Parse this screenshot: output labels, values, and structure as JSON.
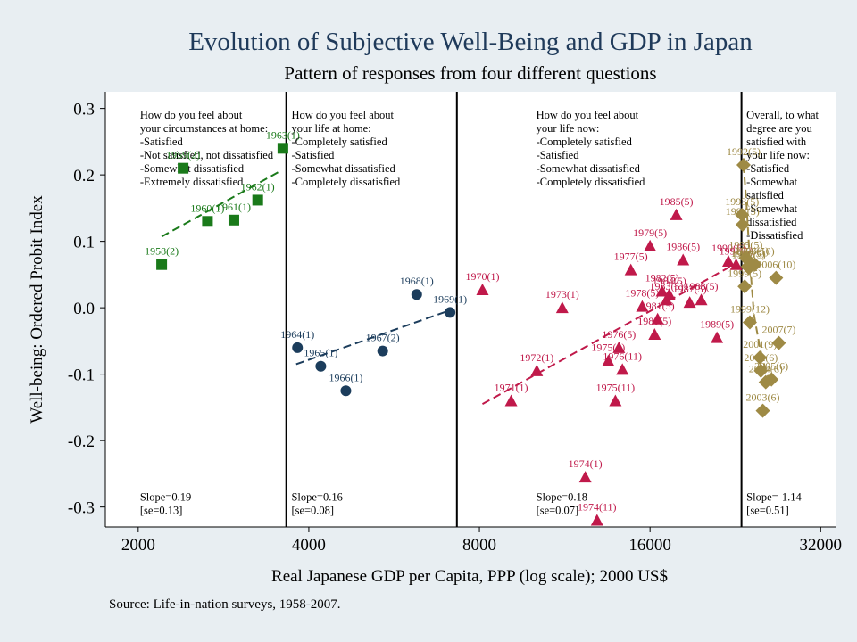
{
  "source_note": "Source: Life-in-nation surveys, 1958-2007.",
  "chart_data": {
    "type": "scatter",
    "title": "Evolution of Subjective Well-Being and GDP in Japan",
    "subtitle": "Pattern of responses from four different questions",
    "xlabel": "Real Japanese GDP per Capita, PPP (log scale); 2000 US$",
    "ylabel": "Well-being: Ordered Probit Index",
    "x_scale": "log2",
    "xlim": [
      1750,
      34000
    ],
    "ylim": [
      -0.33,
      0.325
    ],
    "x_ticks": [
      {
        "value": 2000,
        "label": "2000"
      },
      {
        "value": 4000,
        "label": "4000"
      },
      {
        "value": 8000,
        "label": "8000"
      },
      {
        "value": 16000,
        "label": "16000"
      },
      {
        "value": 32000,
        "label": "32000"
      }
    ],
    "y_ticks": [
      {
        "value": 0.3,
        "label": "0.3"
      },
      {
        "value": 0.2,
        "label": "0.2"
      },
      {
        "value": 0.1,
        "label": "0.1"
      },
      {
        "value": 0.0,
        "label": "0.0"
      },
      {
        "value": -0.1,
        "label": "-0.1"
      },
      {
        "value": -0.2,
        "label": "-0.2"
      },
      {
        "value": -0.3,
        "label": "-0.3"
      }
    ],
    "dividers_x": [
      3650,
      7300,
      23200
    ],
    "panels": [
      {
        "color": "#1a7a1a",
        "marker": "square",
        "text_x": 2000,
        "question": [
          "How do you feel about",
          "your circumstances at home:",
          "-Satisfied",
          "-Not satisfied, not dissatisfied",
          "-Somewhat dissatisfied",
          "-Extremely dissatisfied"
        ],
        "slope": "Slope=0.19",
        "se": "[se=0.13]",
        "trend": [
          [
            2200,
            0.107
          ],
          [
            3550,
            0.205
          ]
        ],
        "points": [
          {
            "x": 2200,
            "y": 0.065,
            "label": "1958(2)"
          },
          {
            "x": 2400,
            "y": 0.21,
            "label": "1959(2)"
          },
          {
            "x": 2650,
            "y": 0.13,
            "label": "1960(1)"
          },
          {
            "x": 2950,
            "y": 0.132,
            "label": "1961(1)"
          },
          {
            "x": 3250,
            "y": 0.162,
            "label": "1962(1)"
          },
          {
            "x": 3600,
            "y": 0.24,
            "label": "1963(1)"
          }
        ]
      },
      {
        "color": "#1c3d5c",
        "marker": "circle",
        "text_x": 3700,
        "question": [
          "How do you feel about",
          "your life at home:",
          "-Completely satisfied",
          "-Satisfied",
          "-Somewhat dissatisfied",
          "-Completely dissatisfied"
        ],
        "slope": "Slope=0.16",
        "se": "[se=0.08]",
        "trend": [
          [
            3800,
            -0.085
          ],
          [
            7200,
            -0.002
          ]
        ],
        "points": [
          {
            "x": 3820,
            "y": -0.06,
            "label": "1964(1)"
          },
          {
            "x": 4200,
            "y": -0.088,
            "label": "1965(1)"
          },
          {
            "x": 4650,
            "y": -0.125,
            "label": "1966(1)"
          },
          {
            "x": 5400,
            "y": -0.065,
            "label": "1967(2)"
          },
          {
            "x": 6200,
            "y": 0.02,
            "label": "1968(1)"
          },
          {
            "x": 7100,
            "y": -0.007,
            "label": "1969(1)"
          }
        ]
      },
      {
        "color": "#c0194a",
        "marker": "triangle",
        "text_x": 10000,
        "question": [
          "How do you feel about",
          "your life now:",
          "-Completely satisfied",
          "-Satisfied",
          "-Somewhat dissatisfied",
          "-Completely dissatisfied"
        ],
        "slope": "Slope=0.18",
        "se": "[se=0.07]",
        "trend": [
          [
            8100,
            -0.145
          ],
          [
            22500,
            0.065
          ]
        ],
        "points": [
          {
            "x": 8100,
            "y": 0.027,
            "label": "1970(1)"
          },
          {
            "x": 9100,
            "y": -0.14,
            "label": "1971(1)"
          },
          {
            "x": 10100,
            "y": -0.095,
            "label": "1972(1)"
          },
          {
            "x": 11200,
            "y": 0.0,
            "label": "1973(1)"
          },
          {
            "x": 12300,
            "y": -0.255,
            "label": "1974(1)"
          },
          {
            "x": 12900,
            "y": -0.32,
            "label": "1974(11)"
          },
          {
            "x": 13500,
            "y": -0.08,
            "label": "1975(1)"
          },
          {
            "x": 13900,
            "y": -0.14,
            "label": "1975(11)"
          },
          {
            "x": 14100,
            "y": -0.06,
            "label": "1976(5)"
          },
          {
            "x": 14300,
            "y": -0.093,
            "label": "1976(11)"
          },
          {
            "x": 14800,
            "y": 0.057,
            "label": "1977(5)"
          },
          {
            "x": 15500,
            "y": 0.002,
            "label": "1978(5)"
          },
          {
            "x": 16000,
            "y": 0.093,
            "label": "1979(5)"
          },
          {
            "x": 16300,
            "y": -0.04,
            "label": "1980(5)"
          },
          {
            "x": 16500,
            "y": -0.017,
            "label": "1981(5)"
          },
          {
            "x": 16800,
            "y": 0.025,
            "label": "1982(5)"
          },
          {
            "x": 17100,
            "y": 0.012,
            "label": "1983(5)"
          },
          {
            "x": 17300,
            "y": 0.02,
            "label": "1984(5)"
          },
          {
            "x": 17800,
            "y": 0.14,
            "label": "1985(5)"
          },
          {
            "x": 18300,
            "y": 0.072,
            "label": "1986(5)"
          },
          {
            "x": 18800,
            "y": 0.008,
            "label": "1987(5)"
          },
          {
            "x": 19700,
            "y": 0.012,
            "label": "1988(5)"
          },
          {
            "x": 21000,
            "y": -0.045,
            "label": "1989(5)"
          },
          {
            "x": 22000,
            "y": 0.07,
            "label": "1990(5)"
          },
          {
            "x": 22700,
            "y": 0.065,
            "label": "1991(5)"
          }
        ]
      },
      {
        "color": "#9e8a45",
        "marker": "diamond",
        "text_x": 23500,
        "question": [
          "Overall, to what",
          "degree are you",
          "satisfied with",
          "your life now:",
          "-Satisfied",
          "-Somewhat",
          "satisfied",
          "-Somewhat",
          "dissatisfied",
          "-Dissatisfied"
        ],
        "slope": "Slope=-1.14",
        "se": "[se=0.51]",
        "trend": [
          [
            23400,
            0.215
          ],
          [
            23700,
            0.15
          ],
          [
            24000,
            0.07
          ],
          [
            24400,
            -0.01
          ],
          [
            25000,
            -0.06
          ],
          [
            25700,
            -0.1
          ],
          [
            26400,
            -0.115
          ]
        ],
        "points": [
          {
            "x": 23400,
            "y": 0.215,
            "label": "1992(5)"
          },
          {
            "x": 23250,
            "y": 0.14,
            "label": "1993(5)"
          },
          {
            "x": 23300,
            "y": 0.125,
            "label": "1994(5)"
          },
          {
            "x": 23600,
            "y": 0.075,
            "label": "1995(5)"
          },
          {
            "x": 23800,
            "y": 0.062,
            "label": "1996(5)"
          },
          {
            "x": 23900,
            "y": 0.06,
            "label": "1997(5)"
          },
          {
            "x": 24200,
            "y": 0.065,
            "label": "1998(5)"
          },
          {
            "x": 23500,
            "y": 0.032,
            "label": "1999(5)"
          },
          {
            "x": 24500,
            "y": 0.065,
            "label": "2006(10)"
          },
          {
            "x": 26700,
            "y": 0.045,
            "label": "2006(10)"
          },
          {
            "x": 24000,
            "y": -0.022,
            "label": "1999(12)"
          },
          {
            "x": 25000,
            "y": -0.075,
            "label": "2001(9)"
          },
          {
            "x": 25100,
            "y": -0.095,
            "label": "2002(6)"
          },
          {
            "x": 25600,
            "y": -0.112,
            "label": "2004(6)"
          },
          {
            "x": 26200,
            "y": -0.108,
            "label": "2005(6)"
          },
          {
            "x": 27000,
            "y": -0.053,
            "label": "2007(7)"
          },
          {
            "x": 25300,
            "y": -0.155,
            "label": "2003(6)"
          }
        ]
      }
    ]
  }
}
